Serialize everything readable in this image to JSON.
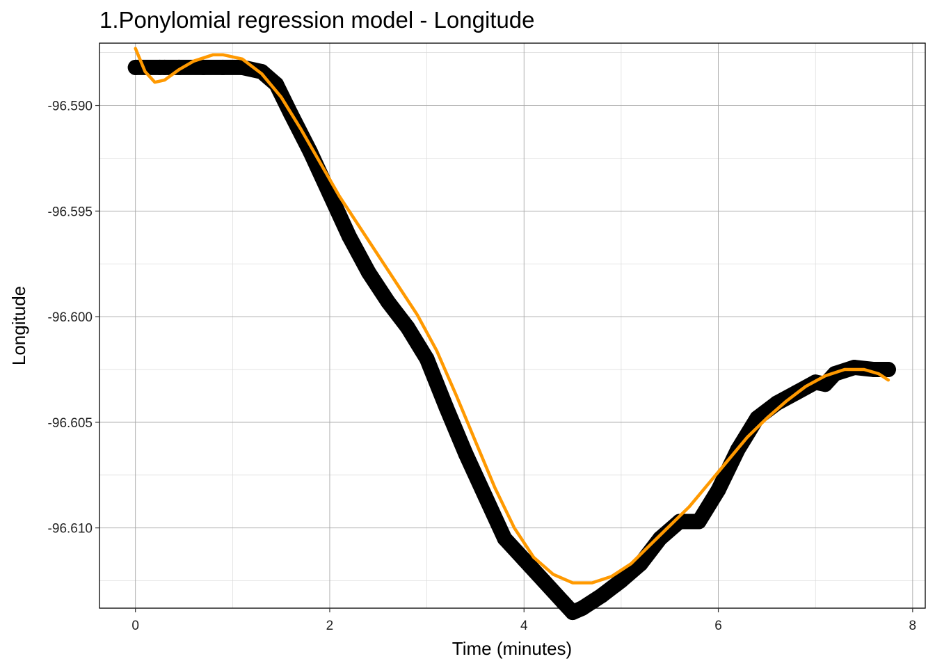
{
  "chart_data": {
    "type": "line",
    "title": "1.Ponylomial regression model - Longitude",
    "xlabel": "Time (minutes)",
    "ylabel": "Longitude",
    "xlim": [
      -0.37,
      8.13
    ],
    "ylim": [
      -96.6138,
      -96.58705
    ],
    "x_ticks": [
      0,
      2,
      4,
      6,
      8
    ],
    "x_tick_labels": [
      "0",
      "2",
      "4",
      "6",
      "8"
    ],
    "y_ticks": [
      -96.59,
      -96.595,
      -96.6,
      -96.605,
      -96.61
    ],
    "y_tick_labels": [
      "-96.590",
      "-96.595",
      "-96.600",
      "-96.605",
      "-96.610"
    ],
    "grid": true,
    "colors": {
      "observed": "#000000",
      "fit": "#ff9900"
    },
    "series": [
      {
        "style": "points",
        "x": [
          0.0,
          0.25,
          0.3,
          0.45,
          0.7,
          0.9,
          1.1,
          1.3,
          1.45,
          1.6,
          1.8,
          2.0,
          2.2,
          2.4,
          2.6,
          2.8,
          3.0,
          3.2,
          3.4,
          3.6,
          3.8,
          4.0,
          4.2,
          4.4,
          4.5,
          4.6,
          4.8,
          5.0,
          5.2,
          5.4,
          5.6,
          5.8,
          6.0,
          6.2,
          6.4,
          6.6,
          6.8,
          7.0,
          7.1,
          7.2,
          7.4,
          7.6,
          7.75
        ],
        "y": [
          -96.5882,
          -96.5882,
          -96.5882,
          -96.5882,
          -96.5882,
          -96.5882,
          -96.5882,
          -96.5884,
          -96.589,
          -96.5904,
          -96.5922,
          -96.5942,
          -96.5962,
          -96.5979,
          -96.5993,
          -96.6005,
          -96.602,
          -96.6043,
          -96.6065,
          -96.6085,
          -96.6105,
          -96.6115,
          -96.6125,
          -96.6135,
          -96.614,
          -96.6138,
          -96.6132,
          -96.6125,
          -96.6117,
          -96.6105,
          -96.6097,
          -96.6097,
          -96.6082,
          -96.6063,
          -96.6048,
          -96.6041,
          -96.6036,
          -96.6031,
          -96.6032,
          -96.6027,
          -96.6024,
          -96.6025,
          -96.6025
        ]
      },
      {
        "style": "line",
        "x": [
          0.0,
          0.1,
          0.2,
          0.3,
          0.45,
          0.6,
          0.8,
          0.9,
          1.1,
          1.3,
          1.5,
          1.7,
          1.9,
          2.1,
          2.3,
          2.5,
          2.7,
          2.9,
          3.1,
          3.3,
          3.5,
          3.7,
          3.9,
          4.1,
          4.3,
          4.5,
          4.7,
          4.9,
          5.1,
          5.3,
          5.5,
          5.7,
          5.9,
          6.1,
          6.3,
          6.5,
          6.7,
          6.9,
          7.1,
          7.3,
          7.5,
          7.65,
          7.75
        ],
        "y": [
          -96.5873,
          -96.5884,
          -96.5889,
          -96.5888,
          -96.5883,
          -96.5879,
          -96.5876,
          -96.5876,
          -96.5878,
          -96.5885,
          -96.5896,
          -96.5911,
          -96.5927,
          -96.5943,
          -96.5957,
          -96.5971,
          -96.5985,
          -96.5999,
          -96.6016,
          -96.6037,
          -96.6059,
          -96.6081,
          -96.61,
          -96.6114,
          -96.6122,
          -96.6126,
          -96.6126,
          -96.6123,
          -96.6117,
          -96.6108,
          -96.6099,
          -96.609,
          -96.6079,
          -96.6068,
          -96.6057,
          -96.6048,
          -96.604,
          -96.6033,
          -96.6028,
          -96.6025,
          -96.6025,
          -96.6027,
          -96.603
        ]
      }
    ]
  }
}
